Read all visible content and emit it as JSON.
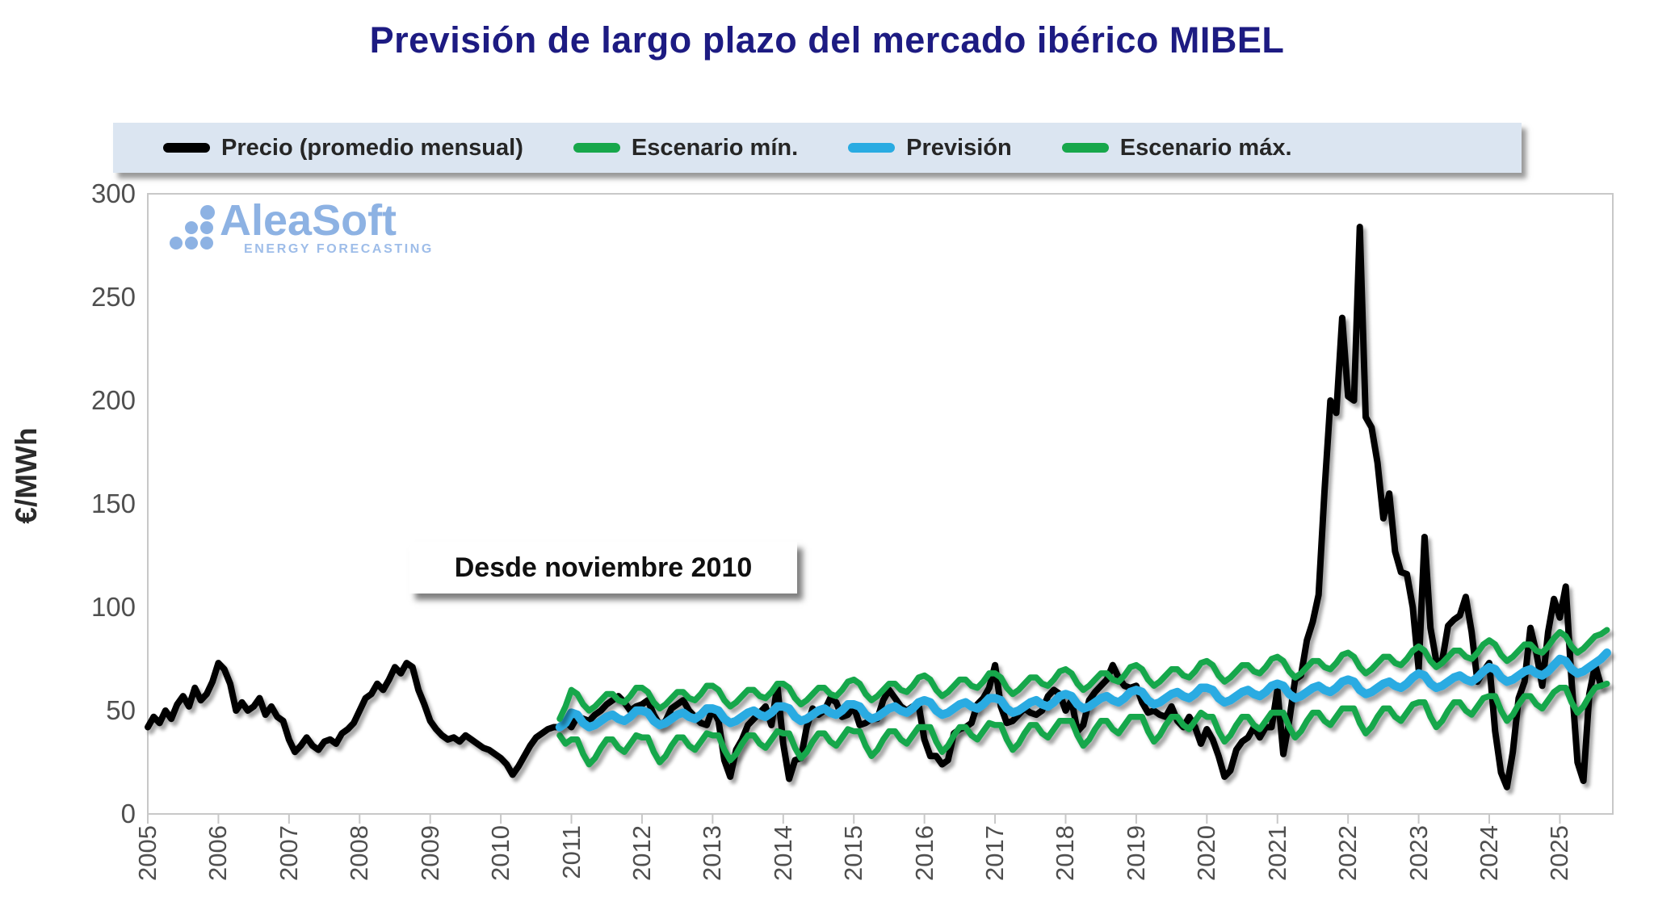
{
  "title": "Previsión de largo plazo del mercado ibérico MIBEL",
  "colors": {
    "title": "#1d1b82",
    "precio": "#000000",
    "prevision": "#29abe2",
    "escenario": "#17a74b",
    "legend_bg": "#dbe5f1",
    "axis_line": "#c8c8c8",
    "axis_text": "#4f4f4f",
    "logo_blue": "#8db2e3",
    "logo_tagline_blue": "#9ebde9"
  },
  "legend": {
    "items": [
      {
        "key": "precio",
        "label": "Precio (promedio mensual)",
        "color": "#000000"
      },
      {
        "key": "escenario-min",
        "label": "Escenario mín.",
        "color": "#17a74b"
      },
      {
        "key": "prevision",
        "label": "Previsión",
        "color": "#29abe2"
      },
      {
        "key": "escenario-max",
        "label": "Escenario máx.",
        "color": "#17a74b"
      }
    ]
  },
  "watermark": {
    "brand": "AleaSoft",
    "tagline": "ENERGY FORECASTING"
  },
  "annotation": {
    "text": "Desde noviembre 2010"
  },
  "y_axis": {
    "title": "€/MWh",
    "min": 0,
    "max": 300,
    "ticks": [
      0,
      50,
      100,
      150,
      200,
      250,
      300
    ]
  },
  "x_axis": {
    "ticks": [
      "2005",
      "2006",
      "2007",
      "2008",
      "2009",
      "2010",
      "2011",
      "2012",
      "2013",
      "2014",
      "2015",
      "2016",
      "2017",
      "2018",
      "2019",
      "2020",
      "2021",
      "2022",
      "2023",
      "2024",
      "2025"
    ]
  },
  "chart_data": {
    "type": "line",
    "title": "Previsión de largo plazo del mercado ibérico MIBEL",
    "xlabel": "",
    "ylabel": "€/MWh",
    "ylim": [
      0,
      300
    ],
    "grid": false,
    "legend_position": "top",
    "frequency": "monthly",
    "x_start_label": "2005-01",
    "forecast_start_label": "2010-11",
    "annotation": "Desde noviembre 2010",
    "series": [
      {
        "name": "Precio (promedio mensual)",
        "color": "#000000",
        "start_month_index": 0,
        "values": [
          42,
          47,
          44,
          50,
          46,
          53,
          57,
          52,
          61,
          55,
          58,
          64,
          73,
          70,
          63,
          50,
          54,
          50,
          52,
          56,
          48,
          52,
          47,
          45,
          36,
          30,
          33,
          37,
          33,
          31,
          35,
          36,
          34,
          39,
          41,
          44,
          50,
          56,
          58,
          63,
          60,
          65,
          71,
          68,
          73,
          71,
          60,
          53,
          45,
          41,
          38,
          36,
          37,
          35,
          38,
          36,
          34,
          32,
          31,
          29,
          27,
          24,
          19,
          23,
          28,
          33,
          37,
          39,
          41,
          42,
          42,
          45,
          42,
          47,
          46,
          45,
          48,
          50,
          53,
          55,
          57,
          54,
          50,
          52,
          53,
          55,
          48,
          43,
          45,
          51,
          53,
          55,
          50,
          47,
          44,
          43,
          51,
          45,
          26,
          18,
          31,
          36,
          43,
          46,
          49,
          52,
          43,
          62,
          34,
          17,
          26,
          27,
          42,
          51,
          48,
          50,
          56,
          54,
          47,
          48,
          52,
          43,
          44,
          46,
          46,
          55,
          60,
          56,
          52,
          50,
          52,
          53,
          36,
          28,
          28,
          24,
          26,
          39,
          41,
          42,
          44,
          53,
          56,
          61,
          72,
          52,
          44,
          45,
          48,
          51,
          49,
          48,
          50,
          57,
          60,
          58,
          50,
          55,
          40,
          43,
          55,
          59,
          62,
          65,
          72,
          66,
          62,
          61,
          62,
          54,
          49,
          50,
          48,
          47,
          52,
          45,
          42,
          47,
          42,
          34,
          41,
          36,
          28,
          18,
          21,
          31,
          35,
          37,
          42,
          37,
          42,
          42,
          60,
          29,
          45,
          65,
          67,
          84,
          93,
          106,
          156,
          200,
          194,
          240,
          202,
          200,
          284,
          192,
          187,
          170,
          143,
          155,
          127,
          117,
          116,
          100,
          70,
          134,
          90,
          74,
          74,
          91,
          94,
          96,
          105,
          88,
          64,
          69,
          73,
          40,
          20,
          13,
          30,
          56,
          64,
          90,
          78,
          62,
          88,
          104,
          95,
          110,
          64,
          25,
          16,
          58,
          72,
          62
        ]
      },
      {
        "name": "Escenario mín.",
        "color": "#17a74b",
        "start_month_index": 70,
        "values": [
          38,
          34,
          36,
          36,
          29,
          24,
          27,
          32,
          36,
          36,
          32,
          30,
          34,
          38,
          37,
          37,
          30,
          25,
          28,
          33,
          37,
          37,
          33,
          31,
          35,
          39,
          38,
          38,
          31,
          26,
          29,
          34,
          38,
          38,
          34,
          32,
          36,
          40,
          39,
          39,
          32,
          27,
          30,
          35,
          39,
          39,
          35,
          33,
          37,
          41,
          40,
          40,
          33,
          28,
          31,
          36,
          40,
          40,
          36,
          34,
          38,
          42,
          42,
          42,
          35,
          30,
          33,
          38,
          42,
          42,
          38,
          36,
          40,
          44,
          43,
          43,
          36,
          31,
          34,
          39,
          43,
          43,
          39,
          37,
          41,
          45,
          45,
          45,
          38,
          33,
          36,
          41,
          45,
          45,
          41,
          39,
          43,
          47,
          47,
          47,
          40,
          35,
          38,
          43,
          47,
          47,
          43,
          41,
          45,
          49,
          47,
          47,
          40,
          35,
          38,
          43,
          47,
          47,
          43,
          41,
          45,
          49,
          49,
          49,
          42,
          37,
          40,
          45,
          49,
          49,
          45,
          43,
          47,
          51,
          51,
          51,
          44,
          39,
          42,
          47,
          51,
          51,
          47,
          45,
          49,
          53,
          54,
          54,
          47,
          42,
          45,
          50,
          54,
          54,
          50,
          48,
          52,
          56,
          57,
          57,
          50,
          45,
          48,
          53,
          57,
          57,
          53,
          51,
          55,
          59,
          61,
          61,
          54,
          49,
          52,
          57,
          61,
          62,
          63
        ]
      },
      {
        "name": "Previsión",
        "color": "#29abe2",
        "start_month_index": 70,
        "values": [
          42,
          44,
          49,
          48,
          44,
          42,
          43,
          45,
          47,
          48,
          46,
          45,
          47,
          50,
          50,
          49,
          45,
          43,
          44,
          46,
          48,
          49,
          47,
          46,
          48,
          51,
          51,
          50,
          46,
          44,
          45,
          47,
          49,
          50,
          48,
          47,
          49,
          52,
          52,
          51,
          47,
          45,
          46,
          48,
          50,
          51,
          49,
          48,
          50,
          53,
          53,
          52,
          48,
          46,
          47,
          49,
          51,
          52,
          50,
          49,
          51,
          54,
          55,
          54,
          50,
          48,
          49,
          51,
          53,
          54,
          52,
          51,
          53,
          56,
          56,
          55,
          51,
          49,
          50,
          52,
          54,
          55,
          53,
          52,
          54,
          57,
          58,
          57,
          53,
          51,
          52,
          54,
          56,
          57,
          55,
          54,
          56,
          59,
          60,
          59,
          55,
          53,
          54,
          56,
          58,
          59,
          57,
          56,
          58,
          61,
          61,
          60,
          56,
          54,
          55,
          57,
          59,
          60,
          58,
          57,
          59,
          62,
          63,
          62,
          58,
          56,
          57,
          59,
          61,
          62,
          60,
          59,
          61,
          64,
          65,
          64,
          60,
          58,
          59,
          61,
          63,
          64,
          62,
          61,
          63,
          66,
          68,
          67,
          63,
          61,
          62,
          64,
          66,
          67,
          65,
          64,
          66,
          69,
          71,
          70,
          66,
          64,
          65,
          67,
          69,
          70,
          68,
          67,
          69,
          72,
          75,
          74,
          70,
          68,
          69,
          71,
          73,
          75,
          78
        ]
      },
      {
        "name": "Escenario máx.",
        "color": "#17a74b",
        "start_month_index": 70,
        "values": [
          46,
          52,
          60,
          58,
          53,
          50,
          52,
          55,
          58,
          58,
          55,
          54,
          57,
          61,
          61,
          59,
          54,
          51,
          53,
          56,
          59,
          59,
          56,
          55,
          58,
          62,
          62,
          60,
          55,
          52,
          54,
          57,
          60,
          60,
          57,
          56,
          59,
          63,
          63,
          61,
          56,
          53,
          55,
          58,
          61,
          61,
          58,
          57,
          60,
          64,
          65,
          63,
          58,
          55,
          57,
          60,
          63,
          63,
          60,
          59,
          62,
          66,
          67,
          65,
          60,
          57,
          59,
          62,
          65,
          65,
          62,
          61,
          64,
          68,
          68,
          66,
          61,
          58,
          60,
          63,
          66,
          66,
          63,
          62,
          65,
          69,
          70,
          68,
          63,
          60,
          62,
          65,
          68,
          68,
          65,
          64,
          67,
          71,
          72,
          70,
          65,
          62,
          64,
          67,
          70,
          70,
          67,
          66,
          69,
          73,
          74,
          72,
          67,
          64,
          66,
          69,
          72,
          72,
          69,
          68,
          71,
          75,
          76,
          74,
          69,
          66,
          68,
          71,
          74,
          74,
          71,
          70,
          73,
          77,
          78,
          76,
          71,
          68,
          70,
          73,
          76,
          76,
          73,
          72,
          75,
          79,
          81,
          79,
          74,
          71,
          73,
          76,
          79,
          79,
          76,
          75,
          78,
          82,
          84,
          82,
          77,
          74,
          76,
          79,
          82,
          82,
          79,
          78,
          81,
          85,
          88,
          86,
          81,
          78,
          80,
          83,
          86,
          87,
          89
        ]
      }
    ]
  }
}
